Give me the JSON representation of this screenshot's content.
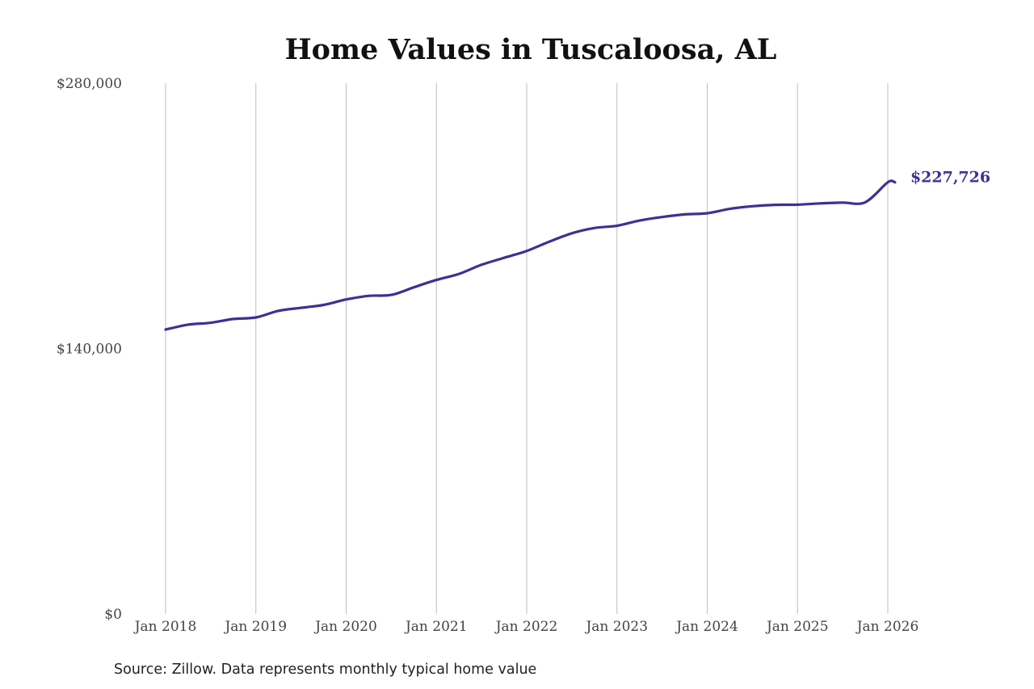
{
  "chart_data": {
    "type": "line",
    "title": "Home Values in Tuscaloosa, AL",
    "source": "Source: Zillow. Data represents monthly typical home value",
    "ylim": [
      0,
      280000
    ],
    "y_ticks": [
      {
        "value": 0,
        "label": "$0"
      },
      {
        "value": 140000,
        "label": "$140,000"
      },
      {
        "value": 280000,
        "label": "$280,000"
      }
    ],
    "x_ticks": [
      {
        "value": 2018.0,
        "label": "Jan 2018"
      },
      {
        "value": 2019.0,
        "label": "Jan 2019"
      },
      {
        "value": 2020.0,
        "label": "Jan 2020"
      },
      {
        "value": 2021.0,
        "label": "Jan 2021"
      },
      {
        "value": 2022.0,
        "label": "Jan 2022"
      },
      {
        "value": 2023.0,
        "label": "Jan 2023"
      },
      {
        "value": 2024.0,
        "label": "Jan 2024"
      },
      {
        "value": 2025.0,
        "label": "Jan 2025"
      },
      {
        "value": 2026.0,
        "label": "Jan 2026"
      }
    ],
    "xlim": [
      2018.0,
      2026.0
    ],
    "grid": "vertical",
    "line_color": "#3b3293",
    "series": [
      {
        "end_label": "$227,726",
        "x": [
          2018.0,
          2018.25,
          2018.5,
          2018.75,
          2019.0,
          2019.25,
          2019.5,
          2019.75,
          2020.0,
          2020.25,
          2020.5,
          2020.75,
          2021.0,
          2021.25,
          2021.5,
          2021.75,
          2022.0,
          2022.25,
          2022.5,
          2022.75,
          2023.0,
          2023.25,
          2023.5,
          2023.75,
          2024.0,
          2024.25,
          2024.5,
          2024.75,
          2025.0,
          2025.25,
          2025.5,
          2025.75,
          2026.0,
          2026.08
        ],
        "y": [
          150000,
          152600,
          153600,
          155600,
          156400,
          159900,
          161500,
          163000,
          165900,
          167800,
          168300,
          172300,
          176200,
          179400,
          184200,
          187900,
          191500,
          196400,
          200800,
          203600,
          204800,
          207500,
          209400,
          210800,
          211400,
          213700,
          215100,
          215800,
          215900,
          216600,
          217000,
          217200,
          227726,
          227726
        ]
      }
    ]
  }
}
